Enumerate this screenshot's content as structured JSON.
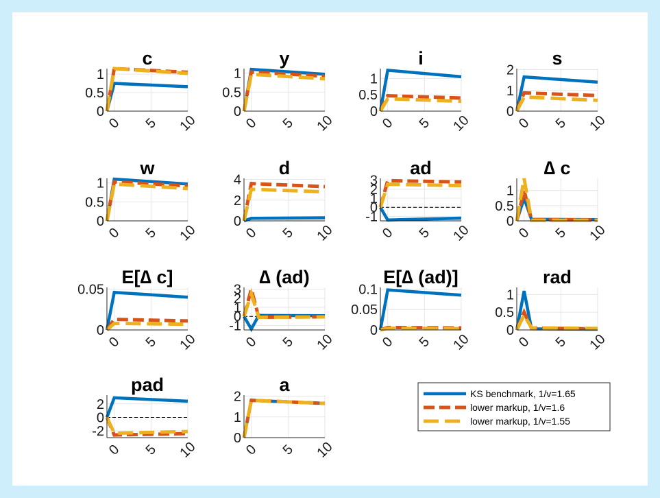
{
  "figure": {
    "legend": {
      "placement": "bottom-right",
      "entries": [
        {
          "label": "KS benchmark, 1/v=1.65",
          "color": "#0072BD",
          "style": "solid"
        },
        {
          "label": "lower markup, 1/v=1.6",
          "color": "#D95319",
          "style": "dash"
        },
        {
          "label": "lower markup, 1/v=1.55",
          "color": "#EDB120",
          "style": "dash"
        }
      ]
    }
  },
  "chart_data": [
    {
      "type": "line",
      "title": "c",
      "xlim": [
        -1,
        10
      ],
      "ylim": [
        0,
        1.15
      ],
      "xticks": [
        {
          "v": 0,
          "label": "0"
        },
        {
          "v": 5,
          "label": "5"
        },
        {
          "v": 10,
          "label": "10"
        }
      ],
      "yticks": [
        {
          "v": 0,
          "label": "0"
        },
        {
          "v": 0.5,
          "label": "0.5"
        },
        {
          "v": 1,
          "label": "1"
        }
      ],
      "zero_line": false,
      "x": [
        -1,
        0,
        10
      ],
      "series": [
        {
          "name": "KS benchmark, 1/v=1.65",
          "values": [
            0,
            0.75,
            0.66
          ]
        },
        {
          "name": "lower markup, 1/v=1.6",
          "values": [
            0,
            1.15,
            1.05
          ]
        },
        {
          "name": "lower markup, 1/v=1.55",
          "values": [
            0,
            1.15,
            1.02
          ]
        }
      ]
    },
    {
      "type": "line",
      "title": "y",
      "xlim": [
        -1,
        10
      ],
      "ylim": [
        0,
        1.12
      ],
      "xticks": [
        {
          "v": 0,
          "label": "0"
        },
        {
          "v": 5,
          "label": "5"
        },
        {
          "v": 10,
          "label": "10"
        }
      ],
      "yticks": [
        {
          "v": 0,
          "label": "0"
        },
        {
          "v": 0.5,
          "label": "0.5"
        },
        {
          "v": 1,
          "label": "1"
        }
      ],
      "zero_line": true,
      "x": [
        -1,
        0,
        10
      ],
      "series": [
        {
          "name": "KS benchmark, 1/v=1.65",
          "values": [
            0,
            1.1,
            0.97
          ]
        },
        {
          "name": "lower markup, 1/v=1.6",
          "values": [
            0,
            1.03,
            0.92
          ]
        },
        {
          "name": "lower markup, 1/v=1.55",
          "values": [
            0,
            0.97,
            0.85
          ]
        }
      ]
    },
    {
      "type": "line",
      "title": "i",
      "xlim": [
        -1,
        10
      ],
      "ylim": [
        0,
        1.3
      ],
      "xticks": [
        {
          "v": 0,
          "label": "0"
        },
        {
          "v": 5,
          "label": "5"
        },
        {
          "v": 10,
          "label": "10"
        }
      ],
      "yticks": [
        {
          "v": 0,
          "label": "0"
        },
        {
          "v": 0.5,
          "label": "0.5"
        },
        {
          "v": 1,
          "label": "1"
        }
      ],
      "zero_line": true,
      "x": [
        -1,
        0,
        10
      ],
      "series": [
        {
          "name": "KS benchmark, 1/v=1.65",
          "values": [
            0,
            1.25,
            1.05
          ]
        },
        {
          "name": "lower markup, 1/v=1.6",
          "values": [
            0,
            0.47,
            0.4
          ]
        },
        {
          "name": "lower markup, 1/v=1.55",
          "values": [
            0,
            0.38,
            0.3
          ]
        }
      ]
    },
    {
      "type": "line",
      "title": "s",
      "xlim": [
        -1,
        10
      ],
      "ylim": [
        0,
        2.05
      ],
      "xticks": [
        {
          "v": 0,
          "label": "0"
        },
        {
          "v": 5,
          "label": "5"
        },
        {
          "v": 10,
          "label": "10"
        }
      ],
      "yticks": [
        {
          "v": 0,
          "label": "0"
        },
        {
          "v": 1,
          "label": "1"
        },
        {
          "v": 2,
          "label": "2"
        }
      ],
      "zero_line": true,
      "x": [
        -1,
        0,
        10
      ],
      "series": [
        {
          "name": "KS benchmark, 1/v=1.65",
          "values": [
            0,
            1.65,
            1.4
          ]
        },
        {
          "name": "lower markup, 1/v=1.6",
          "values": [
            0,
            0.88,
            0.75
          ]
        },
        {
          "name": "lower markup, 1/v=1.55",
          "values": [
            0,
            0.68,
            0.52
          ]
        }
      ]
    },
    {
      "type": "line",
      "title": "w",
      "xlim": [
        -1,
        10
      ],
      "ylim": [
        0,
        1.12
      ],
      "xticks": [
        {
          "v": 0,
          "label": "0"
        },
        {
          "v": 5,
          "label": "5"
        },
        {
          "v": 10,
          "label": "10"
        }
      ],
      "yticks": [
        {
          "v": 0,
          "label": "0"
        },
        {
          "v": 0.5,
          "label": "0.5"
        },
        {
          "v": 1,
          "label": "1"
        }
      ],
      "zero_line": true,
      "x": [
        -1,
        0,
        10
      ],
      "series": [
        {
          "name": "KS benchmark, 1/v=1.65",
          "values": [
            0,
            1.1,
            0.97
          ]
        },
        {
          "name": "lower markup, 1/v=1.6",
          "values": [
            0,
            1.03,
            0.92
          ]
        },
        {
          "name": "lower markup, 1/v=1.55",
          "values": [
            0,
            0.97,
            0.85
          ]
        }
      ]
    },
    {
      "type": "line",
      "title": "d",
      "xlim": [
        -1,
        10
      ],
      "ylim": [
        0,
        4.1
      ],
      "xticks": [
        {
          "v": 0,
          "label": "0"
        },
        {
          "v": 5,
          "label": "5"
        },
        {
          "v": 10,
          "label": "10"
        }
      ],
      "yticks": [
        {
          "v": 0,
          "label": "0"
        },
        {
          "v": 2,
          "label": "2"
        },
        {
          "v": 4,
          "label": "4"
        }
      ],
      "zero_line": false,
      "x": [
        -1,
        0,
        10
      ],
      "series": [
        {
          "name": "KS benchmark, 1/v=1.65",
          "values": [
            0,
            0.25,
            0.3
          ]
        },
        {
          "name": "lower markup, 1/v=1.6",
          "values": [
            0,
            3.6,
            3.3
          ]
        },
        {
          "name": "lower markup, 1/v=1.55",
          "values": [
            0,
            3.05,
            2.8
          ]
        }
      ]
    },
    {
      "type": "line",
      "title": "ad",
      "xlim": [
        -1,
        10
      ],
      "ylim": [
        -1.5,
        3.2
      ],
      "xticks": [
        {
          "v": 0,
          "label": "0"
        },
        {
          "v": 5,
          "label": "5"
        },
        {
          "v": 10,
          "label": "10"
        }
      ],
      "yticks": [
        {
          "v": -1,
          "label": "-1"
        },
        {
          "v": 0,
          "label": "0"
        },
        {
          "v": 1,
          "label": "1"
        },
        {
          "v": 2,
          "label": "2"
        },
        {
          "v": 3,
          "label": "3"
        }
      ],
      "zero_line": true,
      "x": [
        -1,
        0,
        10
      ],
      "series": [
        {
          "name": "KS benchmark, 1/v=1.65",
          "values": [
            0,
            -1.4,
            -1.2
          ]
        },
        {
          "name": "lower markup, 1/v=1.6",
          "values": [
            0,
            2.95,
            2.8
          ]
        },
        {
          "name": "lower markup, 1/v=1.55",
          "values": [
            0,
            2.55,
            2.4
          ]
        }
      ]
    },
    {
      "type": "line",
      "title": "∆ c",
      "xlim": [
        -1,
        10
      ],
      "ylim": [
        0,
        1.4
      ],
      "xticks": [
        {
          "v": 0,
          "label": "0"
        },
        {
          "v": 5,
          "label": "5"
        },
        {
          "v": 10,
          "label": "10"
        }
      ],
      "yticks": [
        {
          "v": 0,
          "label": "0"
        },
        {
          "v": 0.5,
          "label": "0.5"
        },
        {
          "v": 1,
          "label": "1"
        }
      ],
      "zero_line": false,
      "x": [
        -1,
        0,
        1,
        10
      ],
      "series": [
        {
          "name": "KS benchmark, 1/v=1.65",
          "values": [
            0,
            0.75,
            0.05,
            0.04
          ]
        },
        {
          "name": "lower markup, 1/v=1.6",
          "values": [
            0,
            1.0,
            0.04,
            0.03
          ]
        },
        {
          "name": "lower markup, 1/v=1.55",
          "values": [
            0,
            1.4,
            0.02,
            0.02
          ]
        }
      ]
    },
    {
      "type": "line",
      "title": "E[∆ c]",
      "xlim": [
        -1,
        10
      ],
      "ylim": [
        0,
        0.052
      ],
      "xticks": [
        {
          "v": 0,
          "label": "0"
        },
        {
          "v": 5,
          "label": "5"
        },
        {
          "v": 10,
          "label": "10"
        }
      ],
      "yticks": [
        {
          "v": 0,
          "label": "0"
        },
        {
          "v": 0.05,
          "label": "0.05"
        }
      ],
      "zero_line": false,
      "x": [
        -1,
        0,
        10
      ],
      "series": [
        {
          "name": "KS benchmark, 1/v=1.65",
          "values": [
            0,
            0.046,
            0.04
          ]
        },
        {
          "name": "lower markup, 1/v=1.6",
          "values": [
            0,
            0.013,
            0.011
          ]
        },
        {
          "name": "lower markup, 1/v=1.55",
          "values": [
            0,
            0.008,
            0.007
          ]
        }
      ]
    },
    {
      "type": "line",
      "title": "∆ (ad)",
      "xlim": [
        -1,
        10
      ],
      "ylim": [
        -1.5,
        3.2
      ],
      "xticks": [
        {
          "v": 0,
          "label": "0"
        },
        {
          "v": 5,
          "label": "5"
        },
        {
          "v": 10,
          "label": "10"
        }
      ],
      "yticks": [
        {
          "v": -1,
          "label": "-1"
        },
        {
          "v": 0,
          "label": "0"
        },
        {
          "v": 1,
          "label": "1"
        },
        {
          "v": 2,
          "label": "2"
        },
        {
          "v": 3,
          "label": "3"
        }
      ],
      "zero_line": true,
      "x": [
        -1,
        0,
        1,
        10
      ],
      "series": [
        {
          "name": "KS benchmark, 1/v=1.65",
          "values": [
            0,
            -1.4,
            0.1,
            0.08
          ]
        },
        {
          "name": "lower markup, 1/v=1.6",
          "values": [
            0,
            3.0,
            -0.1,
            -0.05
          ]
        },
        {
          "name": "lower markup, 1/v=1.55",
          "values": [
            0,
            2.5,
            -0.1,
            -0.06
          ]
        }
      ]
    },
    {
      "type": "line",
      "title": "E[∆ (ad)]",
      "xlim": [
        -1,
        10
      ],
      "ylim": [
        0,
        0.104
      ],
      "xticks": [
        {
          "v": 0,
          "label": "0"
        },
        {
          "v": 5,
          "label": "5"
        },
        {
          "v": 10,
          "label": "10"
        }
      ],
      "yticks": [
        {
          "v": 0,
          "label": "0"
        },
        {
          "v": 0.05,
          "label": "0.05"
        },
        {
          "v": 0.1,
          "label": "0.1"
        }
      ],
      "zero_line": true,
      "x": [
        -1,
        0,
        10
      ],
      "series": [
        {
          "name": "KS benchmark, 1/v=1.65",
          "values": [
            0,
            0.098,
            0.085
          ]
        },
        {
          "name": "lower markup, 1/v=1.6",
          "values": [
            0,
            0.006,
            0.005
          ]
        },
        {
          "name": "lower markup, 1/v=1.55",
          "values": [
            0,
            0.004,
            0.003
          ]
        }
      ]
    },
    {
      "type": "line",
      "title": "rad",
      "xlim": [
        -1,
        10
      ],
      "ylim": [
        0,
        1.2
      ],
      "xticks": [
        {
          "v": 0,
          "label": "0"
        },
        {
          "v": 5,
          "label": "5"
        },
        {
          "v": 10,
          "label": "10"
        }
      ],
      "yticks": [
        {
          "v": 0,
          "label": "0"
        },
        {
          "v": 0.5,
          "label": "0.5"
        },
        {
          "v": 1,
          "label": "1"
        }
      ],
      "zero_line": true,
      "x": [
        -1,
        0,
        1,
        10
      ],
      "series": [
        {
          "name": "KS benchmark, 1/v=1.65",
          "values": [
            0,
            1.1,
            0.03,
            0.02
          ]
        },
        {
          "name": "lower markup, 1/v=1.6",
          "values": [
            0,
            0.5,
            0.05,
            0.03
          ]
        },
        {
          "name": "lower markup, 1/v=1.55",
          "values": [
            0,
            0.42,
            0.06,
            0.04
          ]
        }
      ]
    },
    {
      "type": "line",
      "title": "pad",
      "xlim": [
        -1,
        10
      ],
      "ylim": [
        -3,
        3.3
      ],
      "xticks": [
        {
          "v": 0,
          "label": "0"
        },
        {
          "v": 5,
          "label": "5"
        },
        {
          "v": 10,
          "label": "10"
        }
      ],
      "yticks": [
        {
          "v": -2,
          "label": "-2"
        },
        {
          "v": 0,
          "label": "0"
        },
        {
          "v": 2,
          "label": "2"
        }
      ],
      "zero_line": true,
      "x": [
        -1,
        0,
        10
      ],
      "series": [
        {
          "name": "KS benchmark, 1/v=1.65",
          "values": [
            0,
            2.9,
            2.4
          ]
        },
        {
          "name": "lower markup, 1/v=1.6",
          "values": [
            0,
            -2.6,
            -2.4
          ]
        },
        {
          "name": "lower markup, 1/v=1.55",
          "values": [
            0,
            -2.35,
            -2.1
          ]
        }
      ]
    },
    {
      "type": "line",
      "title": "a",
      "xlim": [
        -1,
        10
      ],
      "ylim": [
        0,
        2.05
      ],
      "xticks": [
        {
          "v": 0,
          "label": "0"
        },
        {
          "v": 5,
          "label": "5"
        },
        {
          "v": 10,
          "label": "10"
        }
      ],
      "yticks": [
        {
          "v": 0,
          "label": "0"
        },
        {
          "v": 1,
          "label": "1"
        },
        {
          "v": 2,
          "label": "2"
        }
      ],
      "zero_line": true,
      "x": [
        -1,
        0,
        10
      ],
      "series": [
        {
          "name": "KS benchmark, 1/v=1.65",
          "values": [
            0,
            1.8,
            1.65
          ]
        },
        {
          "name": "lower markup, 1/v=1.6",
          "values": [
            0,
            1.8,
            1.65
          ]
        },
        {
          "name": "lower markup, 1/v=1.55",
          "values": [
            0,
            1.8,
            1.65
          ]
        }
      ]
    }
  ]
}
